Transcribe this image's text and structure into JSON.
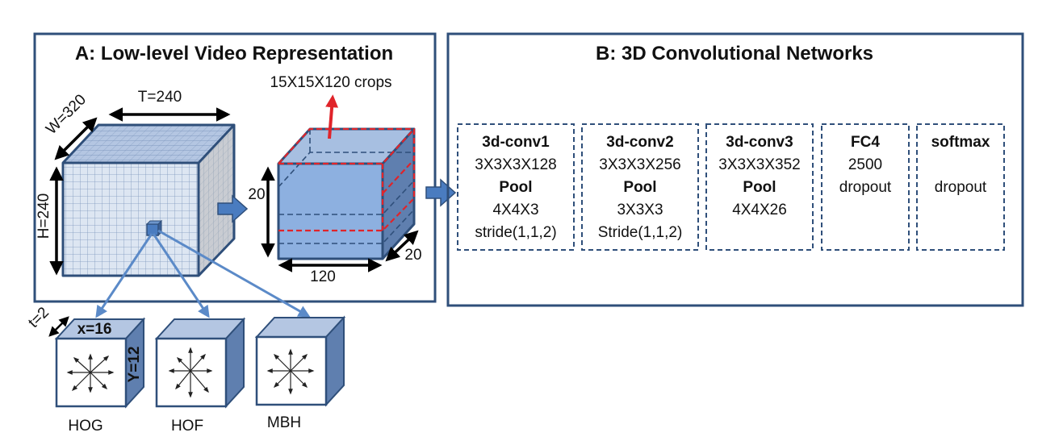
{
  "panel_a": {
    "title": "A: Low-level Video Representation",
    "crops_label": "15X15X120 crops",
    "t_label": "T=240",
    "w_label": "W=320",
    "h_label": "H=240",
    "crop_height_label": "20",
    "crop_width_label": "120",
    "crop_depth_label": "20",
    "small_t_label": "t=2",
    "small_x_label": "x=16",
    "small_y_label": "Y=12",
    "descriptors": [
      "HOG",
      "HOF",
      "MBH"
    ]
  },
  "panel_b": {
    "title": "B: 3D Convolutional Networks",
    "layers": [
      {
        "name": "3d-conv1",
        "lines": [
          "3X3X3X128",
          "Pool",
          "4X4X3",
          "stride(1,1,2)"
        ]
      },
      {
        "name": "3d-conv2",
        "lines": [
          "3X3X3X256",
          "Pool",
          "3X3X3",
          "Stride(1,1,2)"
        ]
      },
      {
        "name": "3d-conv3",
        "lines": [
          "3X3X3X352",
          "Pool",
          "4X4X26"
        ]
      },
      {
        "name": "FC4",
        "lines": [
          "2500",
          "dropout"
        ]
      },
      {
        "name": "softmax",
        "lines": [
          "",
          "dropout"
        ]
      }
    ]
  },
  "colors": {
    "border": "#2f4f7a",
    "cube_front": "#dde6f2",
    "cube_top": "#b4c6e2",
    "cube_side": "#8fa3bf",
    "crop_front": "#8db0e0",
    "crop_side": "#5f7faf",
    "accent_arrow": "#4a7cc0",
    "red": "#e0242a"
  }
}
